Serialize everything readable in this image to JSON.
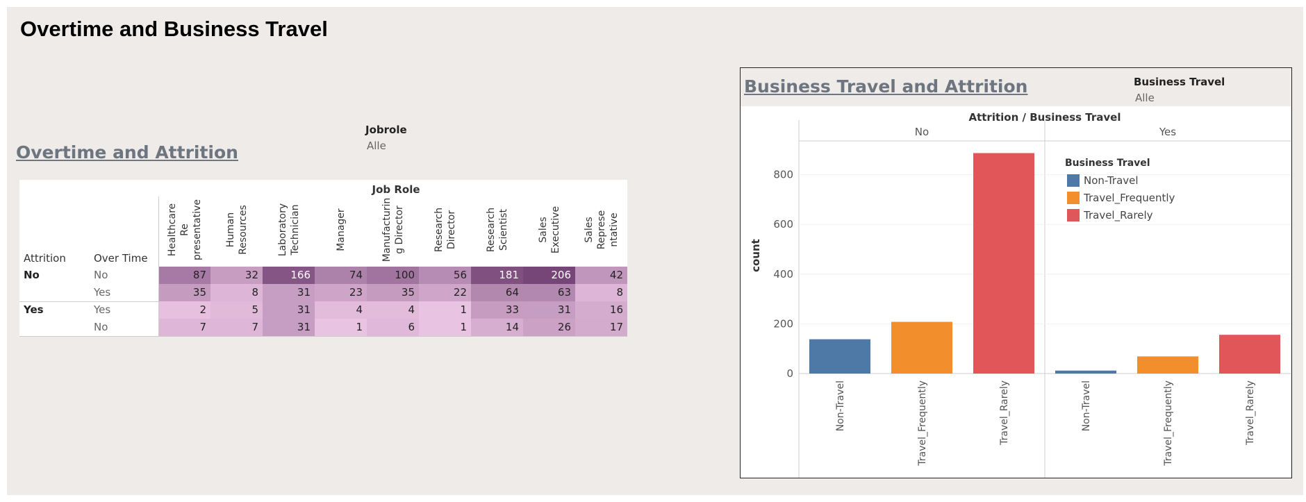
{
  "dashboard_title": "Overtime and Business Travel",
  "left": {
    "sheet_title": "Overtime and Attrition",
    "filter": {
      "label": "Jobrole",
      "value": "Alle"
    },
    "table": {
      "super_header": "Job Role",
      "row_header_1": "Attrition",
      "row_header_2": "Over Time",
      "columns": [
        "Healthcare Re presentative",
        "Human Resources",
        "Laboratory Technician",
        "Manager",
        "Manufacturin g Director",
        "Research Director",
        "Research Scientist",
        "Sales Executive",
        "Sales Represe ntative"
      ],
      "rows": [
        {
          "attrition": "No",
          "overtime": "No",
          "values": [
            87,
            32,
            166,
            74,
            100,
            56,
            181,
            206,
            42
          ]
        },
        {
          "attrition": "",
          "overtime": "Yes",
          "values": [
            35,
            8,
            31,
            23,
            35,
            22,
            64,
            63,
            8
          ]
        },
        {
          "attrition": "Yes",
          "overtime": "Yes",
          "values": [
            2,
            5,
            31,
            4,
            4,
            1,
            33,
            31,
            16
          ]
        },
        {
          "attrition": "",
          "overtime": "No",
          "values": [
            7,
            7,
            31,
            1,
            6,
            1,
            14,
            26,
            17
          ]
        }
      ]
    }
  },
  "right": {
    "sheet_title": "Business Travel and Attrition",
    "filter": {
      "label": "Business Travel",
      "value": "Alle"
    },
    "chart_data": {
      "type": "bar",
      "title": "Attrition / Business Travel",
      "ylabel": "count",
      "ylim": [
        0,
        900
      ],
      "yticks": [
        0,
        200,
        400,
        600,
        800
      ],
      "panes": [
        "No",
        "Yes"
      ],
      "categories": [
        "Non-Travel",
        "Travel_Frequently",
        "Travel_Rarely"
      ],
      "series": [
        {
          "pane": "No",
          "values": [
            138,
            208,
            887
          ]
        },
        {
          "pane": "Yes",
          "values": [
            12,
            69,
            156
          ]
        }
      ],
      "colors": {
        "Non-Travel": "#4e79a7",
        "Travel_Frequently": "#f28e2b",
        "Travel_Rarely": "#e15759"
      },
      "legend": {
        "title": "Business Travel",
        "items": [
          "Non-Travel",
          "Travel_Frequently",
          "Travel_Rarely"
        ],
        "position": "top-right"
      }
    }
  }
}
